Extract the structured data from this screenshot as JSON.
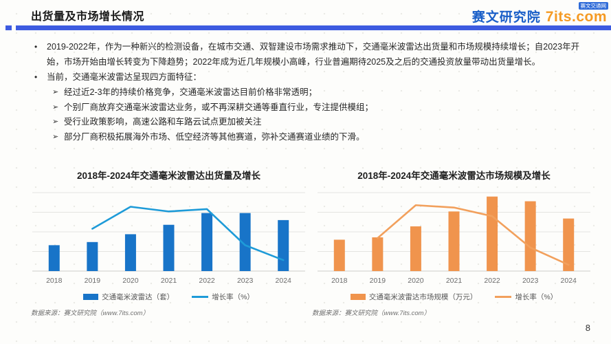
{
  "slide": {
    "title": "出货量及市场增长情况",
    "accent_color": "#3D5BE0",
    "page_number": "8"
  },
  "logo": {
    "brand": "赛文研究院",
    "site": "7its.com",
    "badge": "赛文交通网",
    "brand_color": "#1A5FC8",
    "site_color": "#F59A23"
  },
  "bullets": {
    "items": [
      {
        "marker": "•",
        "text": "2019-2022年，作为一种新兴的检测设备，在城市交通、双智建设市场需求推动下，交通毫米波雷达出货量和市场规模持续增长；自2023年开始，市场开始由增长转变为下降趋势；2022年成为近几年规模小高峰，行业普遍期待2025及之后的交通投资放量带动出货量增长。"
      },
      {
        "marker": "•",
        "text": "当前，交通毫米波雷达呈现四方面特征："
      }
    ],
    "sub_items": [
      {
        "marker": "➢",
        "text": "经过近2-3年的持续价格竞争，交通毫米波雷达目前价格非常透明；"
      },
      {
        "marker": "➢",
        "text": "个别厂商放弃交通毫米波雷达业务，或不再深耕交通等垂直行业，专注提供模组；"
      },
      {
        "marker": "➢",
        "text": "受行业政策影响，高速公路和车路云试点更加被关注"
      },
      {
        "marker": "➢",
        "text": "部分厂商积极拓展海外市场、低空经济等其他赛道，弥补交通赛道业绩的下滑。"
      }
    ]
  },
  "chart_data": [
    {
      "type": "bar",
      "title": "2018年-2024年交通毫米波雷达出货量及增长",
      "categories": [
        "2018",
        "2019",
        "2020",
        "2021",
        "2022",
        "2023",
        "2024"
      ],
      "series": [
        {
          "name": "交通毫米波雷达（套）",
          "type": "bar",
          "color": "#1874C8",
          "values": [
            33,
            37,
            47,
            59,
            74,
            74,
            65
          ]
        },
        {
          "name": "增长率（%）",
          "type": "line",
          "color": "#1E9BD8",
          "values": [
            null,
            54,
            82,
            76,
            79,
            33,
            14
          ]
        }
      ],
      "ylim": [
        0,
        100
      ],
      "y_axis_labels_shown": false,
      "values_are_estimates": true,
      "grid": true,
      "legend_position": "bottom",
      "source": "数据来源：赛文研究院（www.7its.com）"
    },
    {
      "type": "bar",
      "title": "2018年-2024年交通毫米波雷达市场规模及增长",
      "categories": [
        "2018",
        "2019",
        "2020",
        "2021",
        "2022",
        "2023",
        "2024"
      ],
      "series": [
        {
          "name": "交通毫米波雷达市场规模（万元）",
          "type": "bar",
          "color": "#F0944D",
          "values": [
            40,
            43,
            57,
            76,
            95,
            89,
            67
          ]
        },
        {
          "name": "增长率（%）",
          "type": "line",
          "color": "#F2A05C",
          "values": [
            null,
            42,
            84,
            81,
            70,
            30,
            8
          ]
        }
      ],
      "ylim": [
        0,
        100
      ],
      "y_axis_labels_shown": false,
      "values_are_estimates": true,
      "grid": true,
      "legend_position": "bottom",
      "source": "数据来源：赛文研究院（www.7its.com）"
    }
  ]
}
